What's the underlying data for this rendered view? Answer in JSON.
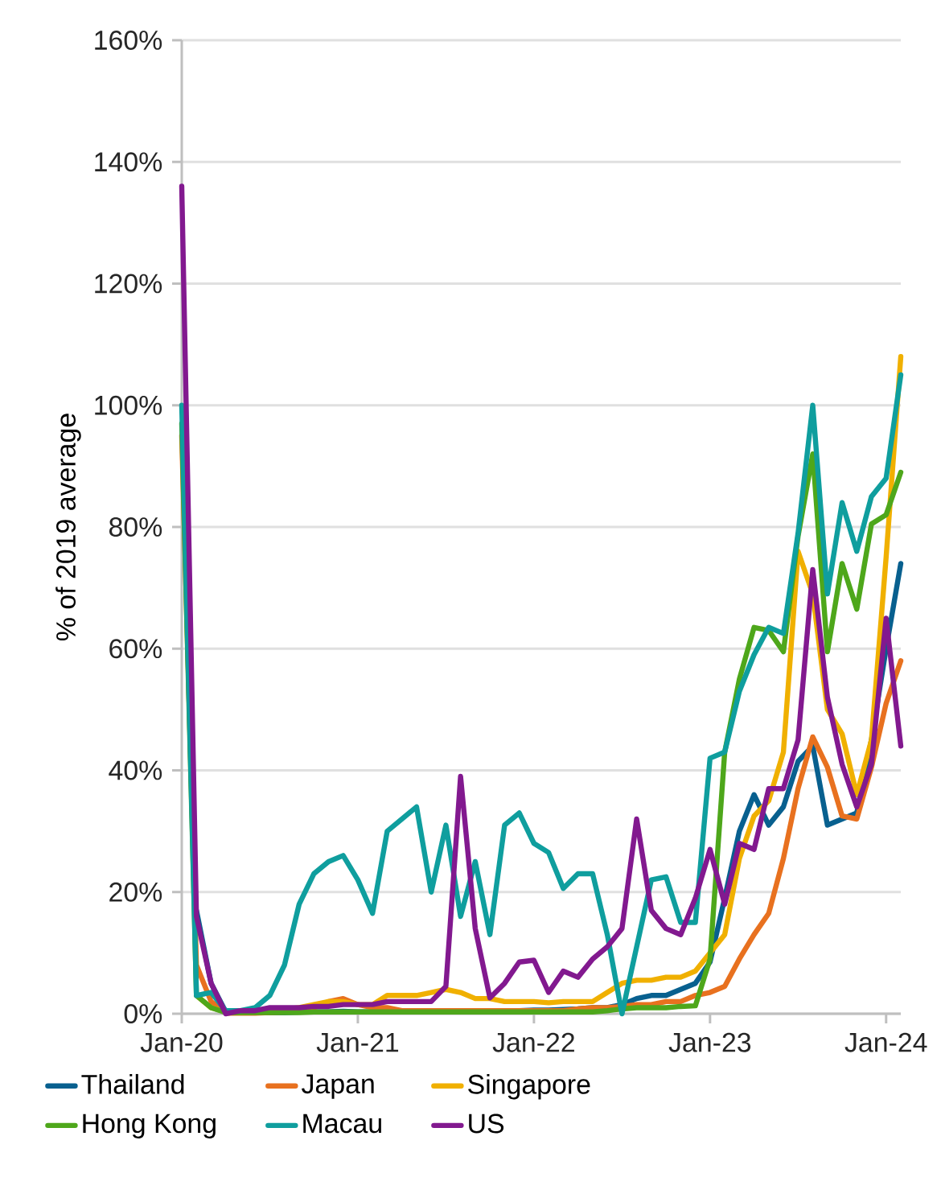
{
  "chart_data": {
    "type": "line",
    "ylabel": "% of 2019 average",
    "xlim": [
      "2020-01",
      "2024-02"
    ],
    "ylim": [
      0,
      160
    ],
    "xticks": [
      {
        "value": "2020-01",
        "label": "Jan-20"
      },
      {
        "value": "2021-01",
        "label": "Jan-21"
      },
      {
        "value": "2022-01",
        "label": "Jan-22"
      },
      {
        "value": "2023-01",
        "label": "Jan-23"
      },
      {
        "value": "2024-01",
        "label": "Jan-24"
      }
    ],
    "yticks": [
      {
        "value": 0,
        "label": "0%"
      },
      {
        "value": 20,
        "label": "20%"
      },
      {
        "value": 40,
        "label": "40%"
      },
      {
        "value": 60,
        "label": "60%"
      },
      {
        "value": 80,
        "label": "80%"
      },
      {
        "value": 100,
        "label": "100%"
      },
      {
        "value": 120,
        "label": "120%"
      },
      {
        "value": 140,
        "label": "140%"
      },
      {
        "value": 160,
        "label": "160%"
      }
    ],
    "x": [
      "2020-01",
      "2020-02",
      "2020-03",
      "2020-04",
      "2020-05",
      "2020-06",
      "2020-07",
      "2020-08",
      "2020-09",
      "2020-10",
      "2020-11",
      "2020-12",
      "2021-01",
      "2021-02",
      "2021-03",
      "2021-04",
      "2021-05",
      "2021-06",
      "2021-07",
      "2021-08",
      "2021-09",
      "2021-10",
      "2021-11",
      "2021-12",
      "2022-01",
      "2022-02",
      "2022-03",
      "2022-04",
      "2022-05",
      "2022-06",
      "2022-07",
      "2022-08",
      "2022-09",
      "2022-10",
      "2022-11",
      "2022-12",
      "2023-01",
      "2023-02",
      "2023-03",
      "2023-04",
      "2023-05",
      "2023-06",
      "2023-07",
      "2023-08",
      "2023-09",
      "2023-10",
      "2023-11",
      "2023-12",
      "2024-01",
      "2024-02"
    ],
    "grid": "y",
    "legend": "bottom",
    "line_style": "solid",
    "marker": "none",
    "series": [
      {
        "name": "Thailand",
        "color": "#08608f",
        "values": [
          null,
          17,
          5,
          0.3,
          0.2,
          0.2,
          0.2,
          0.2,
          0.3,
          0.3,
          0.3,
          0.4,
          0.3,
          0.3,
          0.3,
          0.3,
          0.3,
          0.3,
          0.4,
          0.4,
          0.4,
          0.5,
          0.5,
          0.5,
          0.6,
          0.6,
          0.7,
          0.8,
          1,
          1,
          1.5,
          2.5,
          3,
          3,
          4,
          5,
          8.5,
          19,
          30,
          36,
          31,
          34,
          41.5,
          44,
          31,
          32,
          33,
          45,
          60,
          74
        ]
      },
      {
        "name": "Japan",
        "color": "#e8711f",
        "values": [
          95,
          8,
          2,
          0.1,
          0.1,
          0.1,
          0.2,
          0.3,
          0.5,
          1,
          2,
          2.5,
          1.5,
          1,
          1,
          0.5,
          0.5,
          0.5,
          0.5,
          0.5,
          0.5,
          0.5,
          0.5,
          0.5,
          0.5,
          0.5,
          0.5,
          0.8,
          1,
          1,
          1.2,
          1.5,
          1.5,
          2,
          2,
          3,
          3.5,
          4.5,
          9,
          13,
          16.5,
          25.5,
          37,
          45.5,
          40.5,
          32.5,
          32,
          40.5,
          51,
          58
        ]
      },
      {
        "name": "Singapore",
        "color": "#f0b000",
        "values": [
          null,
          3,
          1,
          0.3,
          0.3,
          0.3,
          0.5,
          0.7,
          1,
          1.5,
          2,
          2,
          1.5,
          1.5,
          3,
          3,
          3,
          3.5,
          4,
          3.5,
          2.5,
          2.5,
          2,
          2,
          2,
          1.8,
          2,
          2,
          2,
          3.5,
          5,
          5.5,
          5.5,
          6,
          6,
          7,
          10,
          13,
          25.5,
          32.5,
          35,
          43,
          76,
          69,
          50,
          46,
          36,
          45,
          75,
          108
        ]
      },
      {
        "name": "Hong Kong",
        "color": "#4ea71b",
        "values": [
          97,
          3,
          1,
          0.2,
          0.2,
          0.2,
          0.2,
          0.2,
          0.2,
          0.3,
          0.3,
          0.3,
          0.3,
          0.3,
          0.3,
          0.3,
          0.3,
          0.3,
          0.3,
          0.3,
          0.3,
          0.3,
          0.3,
          0.3,
          0.3,
          0.3,
          0.3,
          0.3,
          0.3,
          0.5,
          0.8,
          1,
          1,
          1,
          1.2,
          1.3,
          9,
          43,
          55,
          63.5,
          63,
          59.5,
          78.5,
          92,
          59.5,
          74,
          66.5,
          80.5,
          82,
          89
        ]
      },
      {
        "name": "Macau",
        "color": "#0f9e9e",
        "values": [
          100,
          3,
          3.5,
          0.5,
          0.5,
          1,
          3,
          8,
          18,
          23,
          25,
          26,
          22,
          16.5,
          30,
          32,
          34,
          20,
          31,
          16,
          25,
          13,
          31,
          33,
          28,
          26.5,
          20.6,
          23,
          23,
          13,
          0,
          11,
          22,
          22.5,
          15,
          15,
          42,
          43,
          53,
          59,
          63.5,
          62.5,
          79,
          100,
          69,
          84,
          76,
          85,
          88,
          105
        ]
      },
      {
        "name": "US",
        "color": "#82198f",
        "values": [
          136,
          16,
          5,
          0,
          0.5,
          0.5,
          1,
          1,
          1,
          1.2,
          1.2,
          1.5,
          1.5,
          1.5,
          2,
          2,
          2,
          2,
          4.5,
          39,
          14,
          2.6,
          5,
          8.5,
          8.8,
          3.5,
          7,
          6,
          9,
          11,
          14,
          32,
          17,
          14,
          13,
          19,
          27,
          18,
          28,
          27,
          37,
          37,
          45,
          73,
          52,
          41,
          34,
          41,
          65,
          44
        ]
      }
    ]
  }
}
